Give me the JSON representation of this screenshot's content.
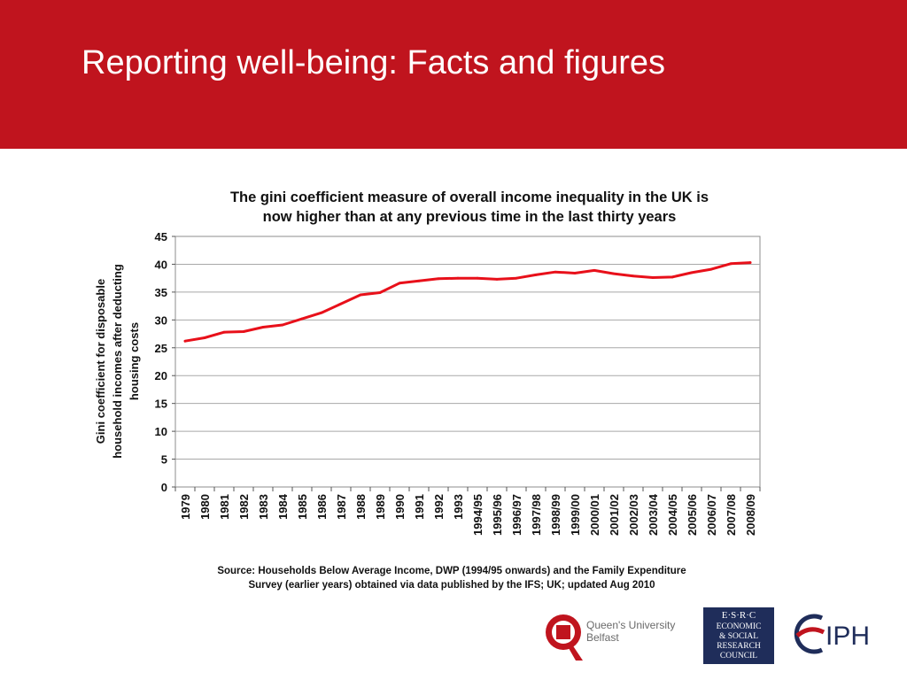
{
  "slide": {
    "title": "Reporting well-being: Facts and figures",
    "header_color": "#c0141e"
  },
  "chart_data": {
    "type": "line",
    "title_lines": [
      "The gini coefficient measure of overall income inequality in the UK is",
      "now higher than at any previous time in the last thirty years"
    ],
    "ylabel_lines": [
      "Gini coefficient for disposable",
      "household incomes after deducting",
      "housing costs"
    ],
    "xlabel": "",
    "ylim": [
      0,
      45
    ],
    "yticks": [
      0,
      5,
      10,
      15,
      20,
      25,
      30,
      35,
      40,
      45
    ],
    "grid": "horizontal",
    "legend": "none",
    "line_color": "#e8101a",
    "categories": [
      "1979",
      "1980",
      "1981",
      "1982",
      "1983",
      "1984",
      "1985",
      "1986",
      "1987",
      "1988",
      "1989",
      "1990",
      "1991",
      "1992",
      "1993",
      "1994/95",
      "1995/96",
      "1996/97",
      "1997/98",
      "1998/99",
      "1999/00",
      "2000/01",
      "2001/02",
      "2002/03",
      "2003/04",
      "2004/05",
      "2005/06",
      "2006/07",
      "2007/08",
      "2008/09"
    ],
    "series": [
      {
        "values": [
          26.2,
          26.8,
          27.8,
          27.9,
          28.7,
          29.1,
          30.2,
          31.3,
          32.9,
          34.5,
          34.9,
          36.6,
          37.0,
          37.4,
          37.5,
          37.5,
          37.3,
          37.5,
          38.1,
          38.6,
          38.4,
          38.9,
          38.3,
          37.9,
          37.6,
          37.7,
          38.5,
          39.1,
          40.1,
          40.3
        ]
      }
    ],
    "source_lines": [
      "Source: Households Below Average Income, DWP (1994/95 onwards) and the Family Expenditure",
      "Survey (earlier years) obtained via data published by the IFS; UK; updated Aug 2010"
    ]
  },
  "logos": {
    "qub": {
      "line1": "Queen's University",
      "line2": "Belfast",
      "color": "#c0141e"
    },
    "esrc": {
      "lines": [
        "E·S·R·C",
        "ECONOMIC",
        "& SOCIAL",
        "RESEARCH",
        "COUNCIL"
      ],
      "color": "#1f2d5a"
    },
    "iph": {
      "text": "IPH",
      "color": "#1f2d5a",
      "accent": "#c0141e"
    }
  }
}
